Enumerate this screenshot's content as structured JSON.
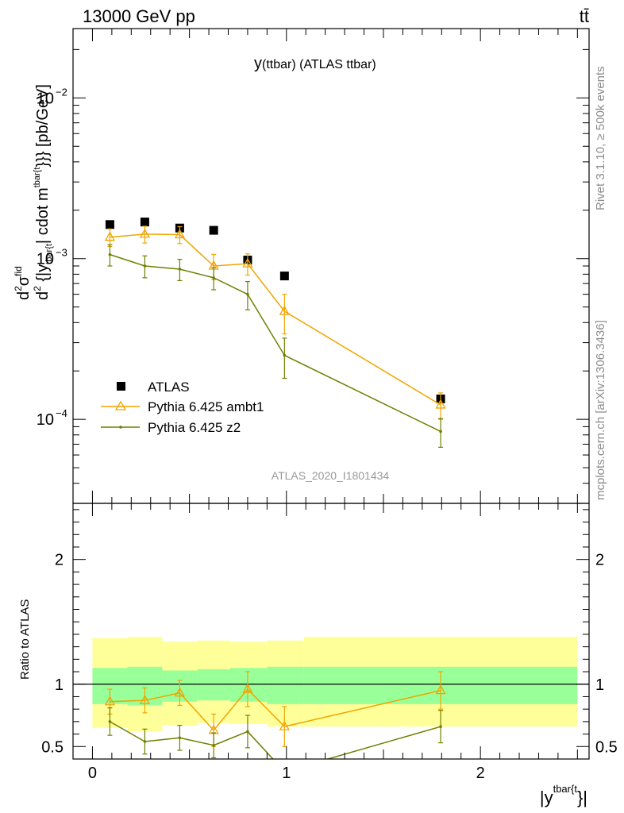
{
  "header": {
    "energy_label": "13000 GeV pp",
    "process_label": "tt̄"
  },
  "side": {
    "rivet_label": "Rivet 3.1.10, ≥ 500k events",
    "mcplots_label": "mcplots.cern.ch [arXiv:1306.3436]"
  },
  "chart_data": [
    {
      "type": "scatter",
      "title": "y(ttbar) (ATLAS ttbar)",
      "title_main": "y",
      "title_rest": "(ttbar) (ATLAS ttbar)",
      "analysis_label": "ATLAS_2020_I1801434",
      "yscale": "log",
      "ylim": [
        3e-05,
        0.027
      ],
      "xlim": [
        -0.1,
        2.56
      ],
      "ylabel_parts": {
        "d1": "d",
        "sup1": "2",
        "sigma": "σ",
        "fid": "fid",
        "d2": "d",
        "sup2": "2",
        "tail": " {|y",
        "ttbar_sub": "tbar{t",
        "tail2": "| cdot m",
        "ttbar_sup": "tbar{t",
        "tail3": "}}} [pb/GeV]"
      },
      "ytick_labels": [
        {
          "value": 0.01,
          "base": "10",
          "exp": "−2"
        },
        {
          "value": 0.001,
          "base": "10",
          "exp": "−3"
        },
        {
          "value": 0.0001,
          "base": "10",
          "exp": "−4"
        }
      ],
      "legend": [
        "ATLAS",
        "Pythia 6.425 ambt1",
        "Pythia 6.425 z2"
      ],
      "legend_position": "lower-left",
      "series": [
        {
          "name": "ATLAS",
          "color": "#000000",
          "marker": "square",
          "x": [
            0.09,
            0.27,
            0.45,
            0.625,
            0.8,
            0.99,
            1.795
          ],
          "y": [
            0.00163,
            0.00169,
            0.00155,
            0.0015,
            0.00098,
            0.00078,
            0.000134
          ]
        },
        {
          "name": "Pythia 6.425 ambt1",
          "color": "#f0a400",
          "marker": "triangle",
          "x": [
            0.09,
            0.27,
            0.45,
            0.625,
            0.8,
            0.99,
            1.795
          ],
          "y": [
            0.00136,
            0.00142,
            0.00141,
            0.0009,
            0.00093,
            0.00047,
            0.000123
          ],
          "yerr": [
            0.00017,
            0.00017,
            0.00017,
            0.00016,
            0.00014,
            0.00013,
            2.3e-05
          ]
        },
        {
          "name": "Pythia 6.425 z2",
          "color": "#6f8000",
          "marker": "dot",
          "x": [
            0.09,
            0.27,
            0.45,
            0.625,
            0.8,
            0.99,
            1.795
          ],
          "y": [
            0.00106,
            0.0009,
            0.00086,
            0.00076,
            0.0006,
            0.00025,
            8.4e-05
          ],
          "yerr": [
            0.00016,
            0.00014,
            0.00013,
            0.00012,
            0.00012,
            7e-05,
            1.7e-05
          ]
        }
      ]
    },
    {
      "type": "scatter",
      "ylabel": "Ratio to ATLAS",
      "xlabel_main": "|y",
      "xlabel_sup": "tbar{t",
      "xlabel_end": "}|",
      "xlim": [
        -0.1,
        2.56
      ],
      "ylim": [
        0.4,
        2.45
      ],
      "xticks": [
        0,
        1,
        2
      ],
      "yticks": [
        0.5,
        1,
        2
      ],
      "ytick_labels": [
        "0.5",
        "1",
        "2"
      ],
      "bands": {
        "edges": [
          0,
          0.18,
          0.36,
          0.54,
          0.71,
          0.9,
          1.09,
          2.5
        ],
        "inner_low": [
          0.84,
          0.83,
          0.86,
          0.87,
          0.86,
          0.84,
          0.84
        ],
        "inner_high": [
          1.13,
          1.14,
          1.11,
          1.12,
          1.13,
          1.14,
          1.14
        ],
        "outer_low": [
          0.65,
          0.62,
          0.67,
          0.69,
          0.68,
          0.66,
          0.66
        ],
        "outer_high": [
          1.37,
          1.38,
          1.34,
          1.35,
          1.34,
          1.35,
          1.38
        ],
        "inner_color": "#99ff99",
        "outer_color": "#ffff99"
      },
      "series": [
        {
          "name": "Pythia 6.425 ambt1",
          "color": "#f0a400",
          "marker": "triangle",
          "x": [
            0.09,
            0.27,
            0.45,
            0.625,
            0.8,
            0.99,
            1.795
          ],
          "y": [
            0.86,
            0.87,
            0.93,
            0.63,
            0.96,
            0.66,
            0.95
          ],
          "yerr": [
            0.1,
            0.1,
            0.1,
            0.13,
            0.14,
            0.16,
            0.15
          ]
        },
        {
          "name": "Pythia 6.425 z2",
          "color": "#6f8000",
          "marker": "dot",
          "x": [
            0.09,
            0.27,
            0.45,
            0.625,
            0.8,
            0.99,
            1.795
          ],
          "y": [
            0.7,
            0.54,
            0.57,
            0.51,
            0.62,
            0.3,
            0.66
          ],
          "yerr": [
            0.11,
            0.1,
            0.1,
            0.1,
            0.13,
            0.08,
            0.13
          ]
        }
      ]
    }
  ]
}
